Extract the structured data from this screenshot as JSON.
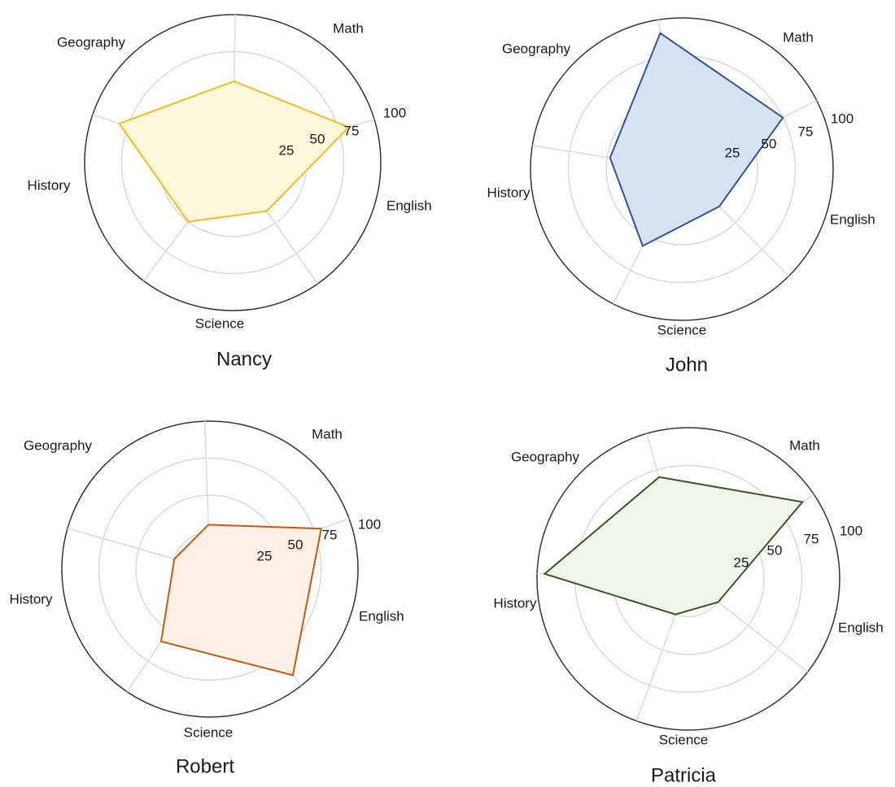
{
  "chart_data": [
    {
      "type": "radar",
      "title": "Nancy",
      "categories": [
        "Math",
        "English",
        "Science",
        "History",
        "Geography"
      ],
      "values": [
        82,
        40,
        50,
        81,
        55
      ],
      "rlim": [
        0,
        100
      ],
      "rticks": [
        "25",
        "50",
        "75",
        "100"
      ],
      "line_color": "#f2bd1d",
      "fill_color": "#fff6dc"
    },
    {
      "type": "radar",
      "title": "John",
      "categories": [
        "Math",
        "English",
        "Science",
        "History",
        "Geography"
      ],
      "values": [
        75,
        35,
        57,
        48,
        91
      ],
      "rlim": [
        0,
        100
      ],
      "rticks": [
        "25",
        "50",
        "75",
        "100"
      ],
      "line_color": "#2f5597",
      "fill_color": "#d9e2f3"
    },
    {
      "type": "radar",
      "title": "Robert",
      "categories": [
        "Math",
        "English",
        "Science",
        "History",
        "Geography"
      ],
      "values": [
        80,
        91,
        59,
        25,
        30
      ],
      "rlim": [
        0,
        100
      ],
      "rticks": [
        "25",
        "50",
        "75",
        "100"
      ],
      "line_color": "#c55a11",
      "fill_color": "#fdf0e6"
    },
    {
      "type": "radar",
      "title": "Patricia",
      "categories": [
        "Math",
        "English",
        "Science",
        "History",
        "Geography"
      ],
      "values": [
        91,
        25,
        25,
        95,
        70
      ],
      "rlim": [
        0,
        100
      ],
      "rticks": [
        "25",
        "50",
        "75",
        "100"
      ],
      "line_color": "#375623",
      "fill_color": "#eef5e9"
    }
  ]
}
